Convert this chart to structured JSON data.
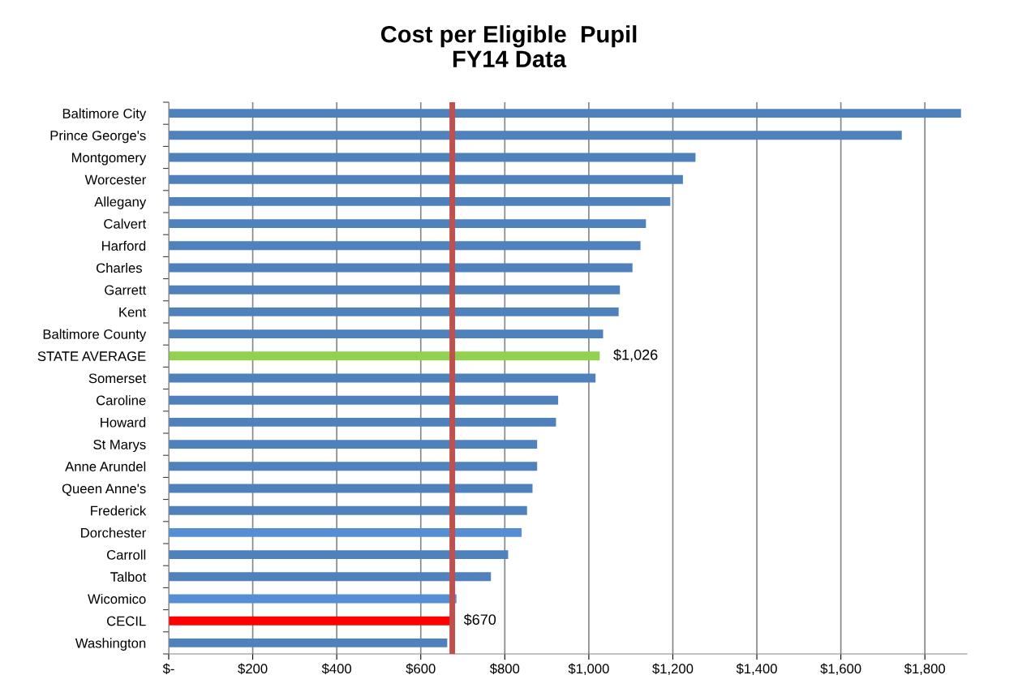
{
  "chart_data": {
    "type": "bar",
    "orientation": "horizontal",
    "title": "Cost per Eligible  Pupil\nFY14 Data",
    "categories": [
      "Baltimore City",
      "Prince George's",
      "Montgomery",
      "Worcester",
      "Allegany",
      "Calvert",
      "Harford",
      "Charles ",
      "Garrett",
      "Kent",
      "Baltimore County",
      "STATE AVERAGE",
      "Somerset",
      "Caroline",
      "Howard",
      "St Marys",
      "Anne Arundel",
      "Queen Anne's",
      "Frederick",
      "Dorchester",
      "Carroll",
      "Talbot",
      "Wicomico",
      "CECIL",
      "Washington"
    ],
    "values": [
      1886,
      1745,
      1254,
      1224,
      1194,
      1136,
      1123,
      1104,
      1074,
      1071,
      1034,
      1026,
      1016,
      927,
      922,
      877,
      877,
      866,
      853,
      840,
      808,
      767,
      685,
      670,
      663
    ],
    "colors": [
      "#4f81bd",
      "#4f81bd",
      "#4f81bd",
      "#4f81bd",
      "#4f81bd",
      "#4f81bd",
      "#4f81bd",
      "#4f81bd",
      "#4f81bd",
      "#4f81bd",
      "#4f81bd",
      "#92d050",
      "#4f81bd",
      "#4f81bd",
      "#4f81bd",
      "#4f81bd",
      "#4f81bd",
      "#4f81bd",
      "#4f81bd",
      "#558ed5",
      "#4f81bd",
      "#4f81bd",
      "#558ed5",
      "#ff0000",
      "#4f81bd"
    ],
    "value_labels": [
      null,
      null,
      null,
      null,
      null,
      null,
      null,
      null,
      null,
      null,
      null,
      "$1,026",
      null,
      null,
      null,
      null,
      null,
      null,
      null,
      null,
      null,
      null,
      null,
      "$670",
      null
    ],
    "xlim": [
      0,
      1900
    ],
    "xticks": [
      {
        "value": 0,
        "label": "$-"
      },
      {
        "value": 200,
        "label": "$200"
      },
      {
        "value": 400,
        "label": "$400"
      },
      {
        "value": 600,
        "label": "$600"
      },
      {
        "value": 800,
        "label": "$800"
      },
      {
        "value": 1000,
        "label": "$1,000"
      },
      {
        "value": 1200,
        "label": "$1,200"
      },
      {
        "value": 1400,
        "label": "$1,400"
      },
      {
        "value": 1600,
        "label": "$1,600"
      },
      {
        "value": 1800,
        "label": "$1,800"
      }
    ],
    "grid": "x",
    "ref_lines": [
      {
        "axis": "x",
        "value": 675,
        "color": "#c0504d"
      }
    ]
  }
}
